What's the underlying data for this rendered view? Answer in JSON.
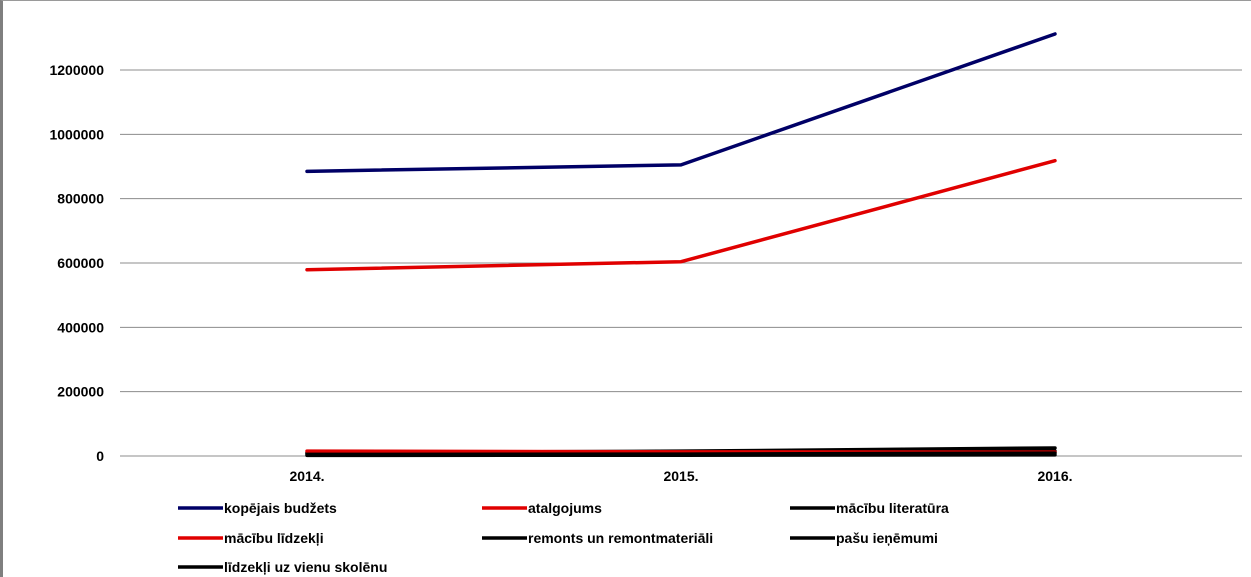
{
  "chart_data": {
    "type": "line",
    "title": "",
    "xlabel": "",
    "ylabel": "",
    "categories": [
      "2014.",
      "2015.",
      "2016."
    ],
    "ylim": [
      0,
      1200000
    ],
    "yticks": [
      "0",
      "200000",
      "400000",
      "600000",
      "800000",
      "1000000",
      "1200000"
    ],
    "grid": true,
    "legend_position": "bottom",
    "series": [
      {
        "name": "kopējais budžets",
        "values": [
          885000,
          905000,
          1312000
        ],
        "color": "#000066"
      },
      {
        "name": "atalgojums",
        "values": [
          579000,
          604000,
          918000
        ],
        "color": "#e00000"
      },
      {
        "name": "mācību literatūra",
        "values": [
          5000,
          6000,
          9000
        ],
        "color": "#000000"
      },
      {
        "name": "mācību līdzekļi",
        "values": [
          15000,
          13000,
          12000
        ],
        "color": "#e00000"
      },
      {
        "name": "remonts un remontmateriāli",
        "values": [
          8000,
          10000,
          15000
        ],
        "color": "#000000"
      },
      {
        "name": "pašu ieņēmumi",
        "values": [
          10000,
          15000,
          25000
        ],
        "color": "#000000"
      },
      {
        "name": "līdzekļi uz vienu skolēnu",
        "values": [
          2000,
          2500,
          3500
        ],
        "color": "#000000"
      }
    ]
  }
}
